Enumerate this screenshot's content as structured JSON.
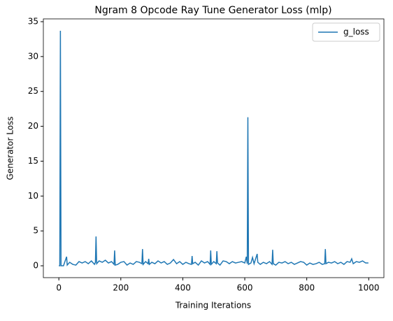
{
  "chart_data": {
    "type": "line",
    "title": "Ngram 8 Opcode Ray Tune Generator Loss (mlp)",
    "xlabel": "Training Iterations",
    "ylabel": "Generator Loss",
    "x": [
      0,
      3,
      5,
      7,
      15,
      25,
      27,
      35,
      45,
      55,
      65,
      75,
      85,
      95,
      105,
      115,
      118,
      120,
      122,
      130,
      140,
      150,
      160,
      170,
      178,
      180,
      182,
      190,
      200,
      210,
      220,
      230,
      240,
      250,
      260,
      268,
      270,
      272,
      280,
      288,
      290,
      292,
      300,
      310,
      320,
      330,
      340,
      350,
      360,
      370,
      380,
      390,
      400,
      410,
      420,
      428,
      430,
      432,
      440,
      450,
      460,
      470,
      480,
      488,
      490,
      492,
      500,
      508,
      510,
      512,
      520,
      530,
      540,
      550,
      560,
      570,
      580,
      590,
      600,
      605,
      608,
      610,
      612,
      620,
      625,
      630,
      640,
      642,
      650,
      660,
      670,
      680,
      688,
      690,
      692,
      700,
      710,
      720,
      730,
      740,
      750,
      760,
      770,
      780,
      790,
      800,
      810,
      820,
      830,
      840,
      850,
      858,
      860,
      862,
      870,
      880,
      890,
      900,
      910,
      920,
      930,
      940,
      945,
      950,
      960,
      970,
      980,
      990,
      999
    ],
    "series": [
      {
        "name": "g_loss",
        "color": "#1f77b4",
        "values": [
          0,
          0,
          33.7,
          0,
          0,
          1.3,
          0.1,
          0.5,
          0.2,
          0.1,
          0.6,
          0.4,
          0.6,
          0.3,
          0.7,
          0.2,
          0.5,
          4.2,
          0.3,
          0.7,
          0.5,
          0.8,
          0.4,
          0.6,
          0.2,
          2.2,
          0.1,
          0.2,
          0.5,
          0.6,
          0.1,
          0.4,
          0.2,
          0.6,
          0.5,
          0.3,
          2.4,
          0.2,
          0.6,
          0.3,
          1.0,
          0.2,
          0.5,
          0.3,
          0.7,
          0.4,
          0.6,
          0.2,
          0.4,
          0.9,
          0.3,
          0.6,
          0.2,
          0.5,
          0.3,
          0.2,
          1.4,
          0.3,
          0.5,
          0.1,
          0.7,
          0.4,
          0.6,
          0.2,
          2.2,
          0.2,
          0.6,
          0.3,
          2.1,
          0.4,
          0.1,
          0.7,
          0.6,
          0.3,
          0.6,
          0.4,
          0.5,
          0.6,
          0.4,
          1.3,
          0.3,
          21.3,
          0.2,
          0.4,
          1.2,
          0.3,
          1.7,
          0.5,
          0.2,
          0.5,
          0.3,
          0.6,
          0.2,
          2.3,
          0.3,
          0.1,
          0.5,
          0.4,
          0.6,
          0.3,
          0.5,
          0.2,
          0.4,
          0.6,
          0.5,
          0.1,
          0.4,
          0.2,
          0.3,
          0.5,
          0.2,
          0.3,
          2.4,
          0.3,
          0.5,
          0.4,
          0.6,
          0.3,
          0.5,
          0.2,
          0.6,
          0.5,
          1.0,
          0.3,
          0.6,
          0.5,
          0.7,
          0.4,
          0.4
        ]
      }
    ],
    "xlim": [
      -50,
      1049
    ],
    "xticks": [
      0,
      200,
      400,
      600,
      800,
      1000
    ],
    "ylim": [
      -1.7,
      35.4
    ],
    "yticks": [
      0,
      5,
      10,
      15,
      20,
      25,
      30,
      35
    ],
    "legend": "upper right"
  }
}
